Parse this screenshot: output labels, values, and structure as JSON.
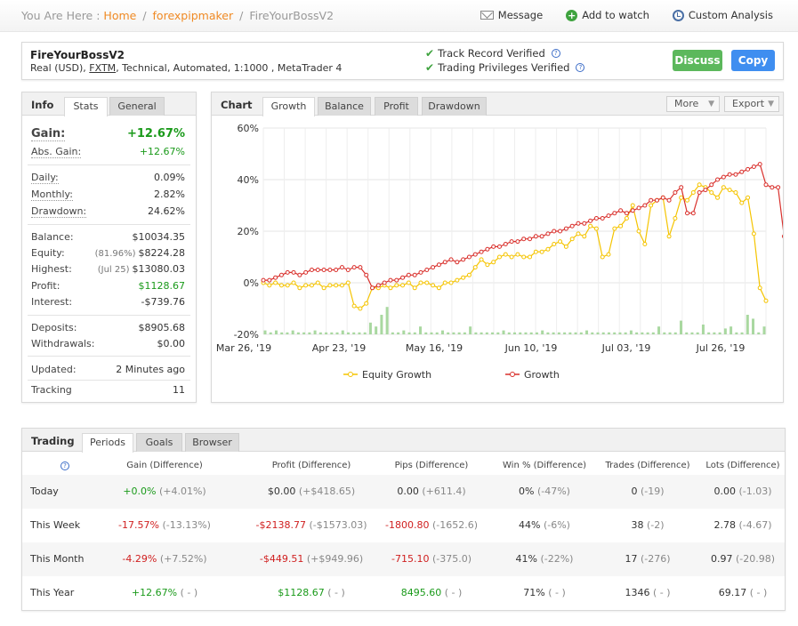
{
  "breadcrumb": {
    "prefix": "You Are Here :",
    "home": "Home",
    "sep": "/",
    "parent": "forexpipmaker",
    "current": "FireYourBossV2"
  },
  "top_actions": {
    "message": "Message",
    "watch": "Add to watch",
    "analysis": "Custom Analysis"
  },
  "account": {
    "name": "FireYourBossV2",
    "sub_prefix": "Real (USD),",
    "broker": "FXTM",
    "sub_suffix": ", Technical, Automated, 1:1000 , MetaTrader 4",
    "verified_track": "Track Record Verified",
    "verified_priv": "Trading Privileges Verified",
    "discuss": "Discuss",
    "copy": "Copy"
  },
  "info": {
    "title": "Info",
    "tabs": [
      "Stats",
      "General"
    ],
    "gain_label": "Gain:",
    "gain": "+12.67%",
    "abs_gain_label": "Abs. Gain:",
    "abs_gain": "+12.67%",
    "daily_label": "Daily:",
    "daily": "0.09%",
    "monthly_label": "Monthly:",
    "monthly": "2.82%",
    "drawdown_label": "Drawdown:",
    "drawdown": "24.62%",
    "balance_label": "Balance:",
    "balance": "$10034.35",
    "equity_label": "Equity:",
    "equity_pct": "(81.96%)",
    "equity": "$8224.28",
    "highest_label": "Highest:",
    "highest_date": "(Jul 25)",
    "highest": "$13080.03",
    "profit_label": "Profit:",
    "profit": "$1128.67",
    "interest_label": "Interest:",
    "interest": "-$739.76",
    "deposits_label": "Deposits:",
    "deposits": "$8905.68",
    "withdrawals_label": "Withdrawals:",
    "withdrawals": "$0.00",
    "updated_label": "Updated:",
    "updated": "2 Minutes ago",
    "tracking_label": "Tracking",
    "tracking": "11"
  },
  "chart_panel": {
    "title": "Chart",
    "tabs": [
      "Growth",
      "Balance",
      "Profit",
      "Drawdown"
    ],
    "more": "More",
    "export": "Export"
  },
  "chart_data": {
    "type": "line",
    "x_ticks": [
      "Mar 26, '19",
      "Apr 23, '19",
      "May 16, '19",
      "Jun 10, '19",
      "Jul 03, '19",
      "Jul 26, '19"
    ],
    "y_ticks": [
      "60%",
      "40%",
      "20%",
      "0%",
      "-20%"
    ],
    "ylim": [
      -20,
      60
    ],
    "grid": true,
    "legend_position": "bottom",
    "series": [
      {
        "name": "Equity Growth",
        "color": "#f5c400",
        "values": [
          0,
          -1,
          0,
          -1,
          -1,
          0,
          -2,
          -1,
          -1,
          0,
          -2,
          -1,
          -1,
          -1,
          0,
          -9,
          -10,
          -8,
          -2,
          -2,
          -1,
          -2,
          -1,
          -1,
          0,
          -2,
          0,
          0,
          -1,
          -2,
          0,
          0,
          1,
          2,
          3,
          6,
          9,
          7,
          8,
          10,
          11,
          10,
          11,
          10,
          10,
          12,
          12,
          13,
          15,
          16,
          14,
          17,
          19,
          18,
          22,
          21,
          10,
          11,
          21,
          22,
          25,
          30,
          20,
          15,
          30,
          32,
          33,
          18,
          25,
          33,
          32,
          35,
          38,
          37,
          35,
          33,
          37,
          36,
          35,
          31,
          33,
          19,
          -2,
          -7
        ]
      },
      {
        "name": "Growth",
        "color": "#d9302c",
        "values": [
          1,
          1,
          2,
          3,
          4,
          4,
          3,
          4,
          5,
          5,
          5,
          5,
          5,
          6,
          5,
          6,
          6,
          3,
          -2,
          -1,
          0,
          1,
          1,
          2,
          3,
          3,
          4,
          5,
          6,
          7,
          8,
          9,
          8,
          9,
          10,
          11,
          12,
          13,
          14,
          14,
          15,
          16,
          16,
          17,
          17,
          18,
          18,
          19,
          20,
          20,
          21,
          22,
          23,
          23,
          24,
          25,
          25,
          26,
          27,
          28,
          27,
          28,
          29,
          30,
          32,
          32,
          33,
          32,
          35,
          37,
          27,
          27,
          35,
          36,
          38,
          40,
          41,
          42,
          42,
          43,
          44,
          45,
          46,
          38,
          37,
          37,
          18,
          13
        ]
      }
    ],
    "volume_bars": [
      2,
      1,
      2,
      1,
      1,
      2,
      1,
      1,
      1,
      2,
      1,
      1,
      1,
      1,
      2,
      1,
      1,
      1,
      1,
      6,
      4,
      10,
      14,
      1,
      1,
      2,
      1,
      1,
      4,
      1,
      1,
      1,
      2,
      1,
      1,
      1,
      1,
      4,
      1,
      1,
      1,
      1,
      1,
      2,
      1,
      1,
      1,
      1,
      1,
      1,
      2,
      1,
      1,
      1,
      1,
      1,
      1,
      1,
      2,
      1,
      1,
      1,
      1,
      1,
      1,
      1,
      2,
      1,
      1,
      1,
      1,
      4,
      1,
      1,
      1,
      7,
      1,
      1,
      1,
      5,
      1,
      1,
      1,
      3,
      4,
      1,
      1,
      10,
      8,
      1,
      4
    ]
  },
  "trading": {
    "title": "Trading",
    "tabs": [
      "Periods",
      "Goals",
      "Browser"
    ],
    "columns": [
      "Gain (Difference)",
      "Profit (Difference)",
      "Pips (Difference)",
      "Win % (Difference)",
      "Trades (Difference)",
      "Lots (Difference)"
    ],
    "rows": [
      {
        "label": "Today",
        "gain": "+0.0%",
        "gain_d": "(+4.01%)",
        "profit": "$0.00",
        "profit_d": "(+$418.65)",
        "pips": "0.00",
        "pips_d": "(+611.4)",
        "win": "0%",
        "win_d": "(-47%)",
        "trades": "0",
        "trades_d": "(-19)",
        "lots": "0.00",
        "lots_d": "(-1.03)"
      },
      {
        "label": "This Week",
        "gain": "-17.57%",
        "gain_d": "(-13.13%)",
        "profit": "-$2138.77",
        "profit_d": "(-$1573.03)",
        "pips": "-1800.80",
        "pips_d": "(-1652.6)",
        "win": "44%",
        "win_d": "(-6%)",
        "trades": "38",
        "trades_d": "(-2)",
        "lots": "2.78",
        "lots_d": "(-4.67)"
      },
      {
        "label": "This Month",
        "gain": "-4.29%",
        "gain_d": "(+7.52%)",
        "profit": "-$449.51",
        "profit_d": "(+$949.96)",
        "pips": "-715.10",
        "pips_d": "(-375.0)",
        "win": "41%",
        "win_d": "(-22%)",
        "trades": "17",
        "trades_d": "(-276)",
        "lots": "0.97",
        "lots_d": "(-20.98)"
      },
      {
        "label": "This Year",
        "gain": "+12.67%",
        "gain_d": "( - )",
        "profit": "$1128.67",
        "profit_d": "( - )",
        "pips": "8495.60",
        "pips_d": "( - )",
        "win": "71%",
        "win_d": "( - )",
        "trades": "1346",
        "trades_d": "( - )",
        "lots": "69.17",
        "lots_d": "( - )"
      }
    ]
  }
}
